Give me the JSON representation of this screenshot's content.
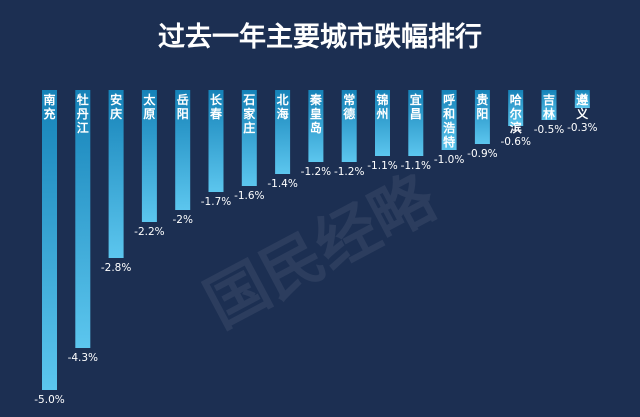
{
  "chart_data": {
    "type": "bar",
    "title": "过去一年主要城市跌幅排行",
    "xlabel": "",
    "ylabel": "",
    "ylim": [
      -5.0,
      0
    ],
    "grid": false,
    "legend": "none",
    "watermark": "国民经略",
    "categories": [
      "南充",
      "牡丹江",
      "安庆",
      "太原",
      "岳阳",
      "长春",
      "石家庄",
      "北海",
      "秦皇岛",
      "常德",
      "锦州",
      "宜昌",
      "呼和浩特",
      "贵阳",
      "哈尔滨",
      "吉林",
      "遵义"
    ],
    "values": [
      -5.0,
      -4.3,
      -2.8,
      -2.2,
      -2.0,
      -1.7,
      -1.6,
      -1.4,
      -1.2,
      -1.2,
      -1.1,
      -1.1,
      -1.0,
      -0.9,
      -0.6,
      -0.5,
      -0.3
    ],
    "value_labels": [
      "-5.0%",
      "-4.3%",
      "-2.8%",
      "-2.2%",
      "-2%",
      "-1.7%",
      "-1.6%",
      "-1.4%",
      "-1.2%",
      "-1.2%",
      "-1.1%",
      "-1.1%",
      "-1.0%",
      "-0.9%",
      "-0.6%",
      "-0.5%",
      "-0.3%"
    ],
    "colors": {
      "background": "#1c2f52",
      "bar_top": "#1582b8",
      "bar_bottom": "#5cc6ee",
      "text": "#ffffff"
    }
  }
}
